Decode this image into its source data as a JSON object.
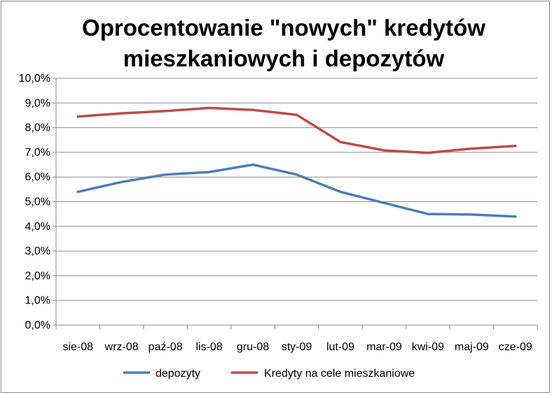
{
  "chart_data": {
    "type": "line",
    "title_line1": "Oprocentowanie \"nowych\" kredytów",
    "title_line2": "mieszkaniowych i depozytów",
    "categories": [
      "sie-08",
      "wrz-08",
      "paź-08",
      "lis-08",
      "gru-08",
      "sty-09",
      "lut-09",
      "mar-09",
      "kwi-09",
      "maj-09",
      "cze-09"
    ],
    "series": [
      {
        "name": "depozyty",
        "color": "#4a7ebb",
        "values": [
          5.4,
          5.8,
          6.1,
          6.2,
          6.5,
          6.1,
          5.4,
          4.95,
          4.5,
          4.48,
          4.4
        ]
      },
      {
        "name": "Kredyty na cele mieszkaniowe",
        "color": "#be4b48",
        "values": [
          8.45,
          8.58,
          8.67,
          8.8,
          8.72,
          8.52,
          7.42,
          7.08,
          6.98,
          7.15,
          7.26
        ]
      }
    ],
    "yticks": [
      "0,0%",
      "1,0%",
      "2,0%",
      "3,0%",
      "4,0%",
      "5,0%",
      "6,0%",
      "7,0%",
      "8,0%",
      "9,0%",
      "10,0%"
    ],
    "ylim": [
      0,
      10
    ],
    "grid": true,
    "legend": "bottom"
  }
}
